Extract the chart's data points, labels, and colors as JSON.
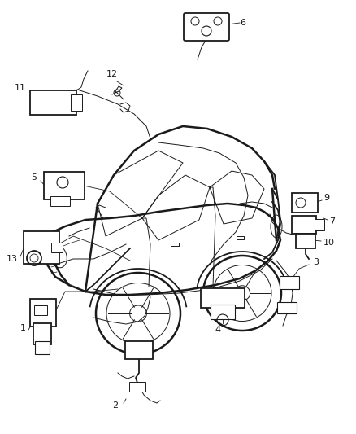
{
  "fig_width": 4.38,
  "fig_height": 5.33,
  "dpi": 100,
  "bg": "#ffffff",
  "lc": "#1a1a1a",
  "gray": "#888888",
  "light_gray": "#cccccc"
}
